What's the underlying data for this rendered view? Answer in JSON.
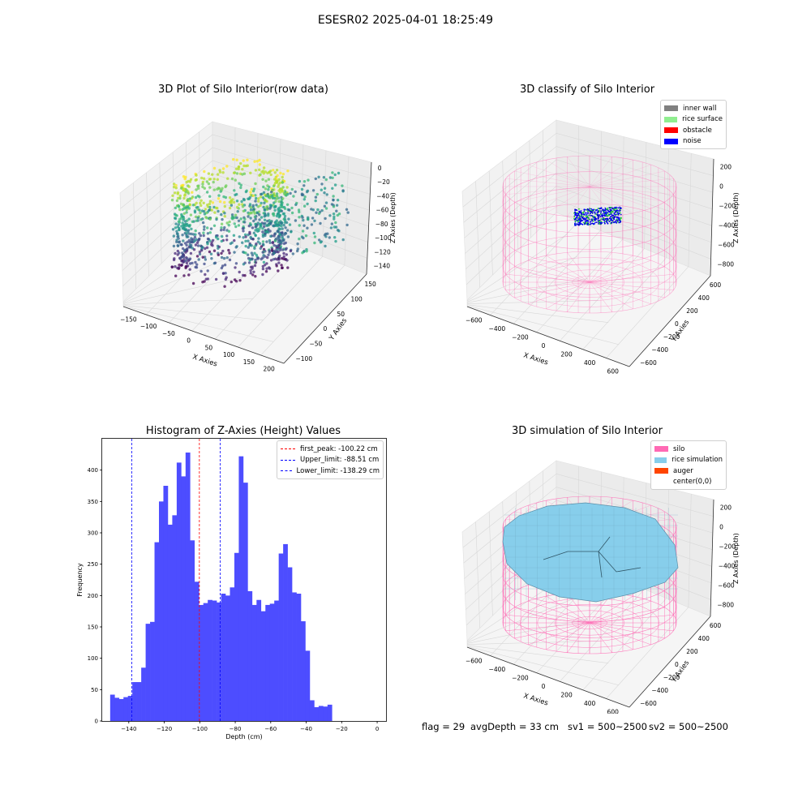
{
  "figure": {
    "suptitle": "ESESR02 2025-04-01 18:25:49"
  },
  "panels": {
    "raw": {
      "title": "3D Plot of Silo Interior(row data)",
      "xlabel": "X Axies",
      "ylabel": "Y Axies",
      "zlabel": "Z Axies (Depth)",
      "xticks": [
        "−150",
        "−100",
        "−50",
        "0",
        "50",
        "100",
        "150",
        "200"
      ],
      "yticks": [
        "−100",
        "−50",
        "0",
        "50",
        "100",
        "150"
      ],
      "zticks": [
        "0",
        "−20",
        "−40",
        "−60",
        "−80",
        "−100",
        "−120",
        "−140"
      ]
    },
    "classify": {
      "title": "3D classify of Silo Interior",
      "xlabel": "X Axies",
      "ylabel": "Y Axies",
      "zlabel": "Z Axies (Depth)",
      "xticks": [
        "−600",
        "−400",
        "−200",
        "0",
        "200",
        "400",
        "600"
      ],
      "yticks": [
        "−600",
        "−400",
        "−200",
        "0",
        "200",
        "400",
        "600"
      ],
      "zticks": [
        "200",
        "0",
        "−200",
        "−400",
        "−600",
        "−800"
      ],
      "legend": [
        {
          "label": "inner wall",
          "color": "#808080"
        },
        {
          "label": "rice surface",
          "color": "#90ee90"
        },
        {
          "label": "obstacle",
          "color": "#ff0000"
        },
        {
          "label": "noise",
          "color": "#0000ff"
        }
      ]
    },
    "simulation": {
      "title": "3D simulation of Silo Interior",
      "xlabel": "X Axies",
      "ylabel": "Y Axies",
      "zlabel": "Z Axies (Depth)",
      "xticks": [
        "−600",
        "−400",
        "−200",
        "0",
        "200",
        "400",
        "600"
      ],
      "yticks": [
        "−600",
        "−400",
        "−200",
        "0",
        "200",
        "400",
        "600"
      ],
      "zticks": [
        "200",
        "0",
        "−200",
        "−400",
        "−600",
        "−800"
      ],
      "legend": [
        {
          "label": "silo",
          "color": "#ff69b4"
        },
        {
          "label": "rice simulation",
          "color": "#87ceeb"
        },
        {
          "label": "auger",
          "color": "#ff4500"
        },
        {
          "label": "center(0,0)",
          "color": "#ffffff"
        }
      ]
    }
  },
  "footer": {
    "flag": "flag = 29",
    "avg_depth": "avgDepth = 33 cm",
    "sv1": "sv1 = 500~2500",
    "sv2": "sv2 = 500~2500"
  },
  "chart_data": [
    {
      "type": "histogram",
      "title": "Histogram of Z-Axies (Height) Values",
      "xlabel": "Depth (cm)",
      "ylabel": "Frequency",
      "xlim": [
        -155,
        5
      ],
      "ylim": [
        0,
        450
      ],
      "xticks": [
        -140,
        -120,
        -100,
        -80,
        -60,
        -40,
        -20,
        0
      ],
      "yticks": [
        0,
        50,
        100,
        150,
        200,
        250,
        300,
        350,
        400
      ],
      "bar_color": "#4d4dff",
      "bin_start": -150.5,
      "bin_width": 2.5,
      "counts": [
        42,
        37,
        35,
        38,
        40,
        62,
        62,
        85,
        155,
        158,
        285,
        350,
        375,
        313,
        328,
        412,
        390,
        428,
        288,
        222,
        185,
        188,
        193,
        192,
        189,
        203,
        200,
        213,
        268,
        422,
        380,
        207,
        185,
        193,
        175,
        185,
        187,
        192,
        267,
        282,
        245,
        205,
        203,
        159,
        112,
        33,
        22,
        24,
        23,
        26
      ],
      "reference_lines": [
        {
          "label": "first_peak: -100.22 cm",
          "value": -100.22,
          "color": "#ff0000"
        },
        {
          "label": "Upper_limit: -88.51 cm",
          "value": -88.51,
          "color": "#0000ff"
        },
        {
          "label": "Lower_limit: -138.29 cm",
          "value": -138.29,
          "color": "#0000ff"
        }
      ],
      "legend_position": "upper-right"
    }
  ]
}
